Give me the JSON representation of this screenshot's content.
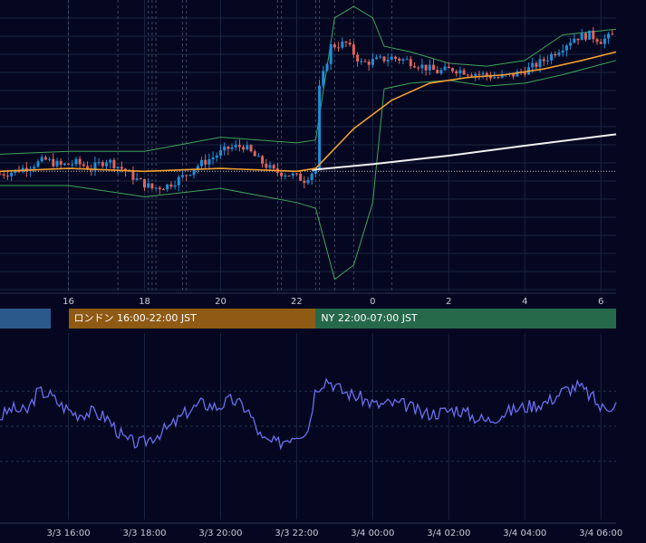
{
  "colors": {
    "background": "#050720",
    "grid": "#1a2440",
    "vline_dashed": "#3e4660",
    "candle_up": "#1e8fd8",
    "candle_down": "#e0635a",
    "ma_fast": "#f0a030",
    "ma_slow": "#f2f2f2",
    "bollinger": "#3fa45a",
    "oscillator": "#6a6ff0",
    "reference_line": "#c8c8c8"
  },
  "sessions": [
    {
      "label": "",
      "color": "#2a5a8c"
    },
    {
      "label": "ロンドン 16:00-22:00 JST",
      "color": "#8e5a14"
    },
    {
      "label": "NY 22:00-07:00 JST",
      "color": "#26694a"
    }
  ],
  "chart_data": [
    {
      "type": "candlestick",
      "x_axis_ticks": [
        "16",
        "18",
        "20",
        "22",
        "0",
        "2",
        "4",
        "6"
      ],
      "x_range_hours": [
        14.2,
        30.4
      ],
      "y_range": [
        0,
        100
      ],
      "price_path": [
        [
          14.2,
          40
        ],
        [
          14.6,
          41
        ],
        [
          15.0,
          43
        ],
        [
          15.4,
          45
        ],
        [
          15.8,
          43
        ],
        [
          16.2,
          44
        ],
        [
          16.6,
          42
        ],
        [
          17.0,
          45
        ],
        [
          17.4,
          42
        ],
        [
          17.8,
          38
        ],
        [
          18.2,
          35
        ],
        [
          18.6,
          36
        ],
        [
          19.0,
          39
        ],
        [
          19.4,
          43
        ],
        [
          19.8,
          46
        ],
        [
          20.2,
          49
        ],
        [
          20.6,
          50
        ],
        [
          21.0,
          45
        ],
        [
          21.4,
          41
        ],
        [
          21.8,
          40
        ],
        [
          22.2,
          38
        ],
        [
          22.5,
          42
        ],
        [
          22.6,
          70
        ],
        [
          22.9,
          85
        ],
        [
          23.3,
          86
        ],
        [
          23.7,
          79
        ],
        [
          24.1,
          80
        ],
        [
          24.5,
          81
        ],
        [
          24.9,
          80
        ],
        [
          25.3,
          78
        ],
        [
          25.7,
          76
        ],
        [
          26.1,
          77
        ],
        [
          26.5,
          76
        ],
        [
          26.9,
          75
        ],
        [
          27.3,
          74
        ],
        [
          27.7,
          75
        ],
        [
          28.1,
          77
        ],
        [
          28.5,
          80
        ],
        [
          28.9,
          84
        ],
        [
          29.3,
          88
        ],
        [
          29.7,
          89
        ],
        [
          30.0,
          87
        ],
        [
          30.4,
          89
        ]
      ],
      "ma_fast": [
        [
          14.2,
          41
        ],
        [
          16.0,
          42
        ],
        [
          18.0,
          41
        ],
        [
          20.0,
          42
        ],
        [
          22.0,
          41
        ],
        [
          22.5,
          42
        ],
        [
          23.5,
          56
        ],
        [
          24.5,
          66
        ],
        [
          25.5,
          72
        ],
        [
          26.5,
          74
        ],
        [
          27.5,
          75
        ],
        [
          28.5,
          77
        ],
        [
          29.5,
          80
        ],
        [
          30.4,
          83
        ]
      ],
      "ma_slow": [
        [
          22.4,
          41.5
        ],
        [
          24.0,
          43.5
        ],
        [
          26.0,
          46.5
        ],
        [
          28.0,
          50
        ],
        [
          30.4,
          54
        ]
      ],
      "bollinger_upper": [
        [
          14.2,
          47
        ],
        [
          16.0,
          48
        ],
        [
          18.0,
          48
        ],
        [
          20.0,
          53
        ],
        [
          22.0,
          51
        ],
        [
          22.5,
          52
        ],
        [
          23.0,
          95
        ],
        [
          23.5,
          99
        ],
        [
          24.0,
          95
        ],
        [
          24.3,
          85
        ],
        [
          25.0,
          83
        ],
        [
          26.0,
          79
        ],
        [
          27.0,
          78
        ],
        [
          28.0,
          80
        ],
        [
          29.0,
          89
        ],
        [
          30.4,
          91
        ]
      ],
      "bollinger_lower": [
        [
          14.2,
          36
        ],
        [
          16.0,
          36
        ],
        [
          18.0,
          32
        ],
        [
          20.0,
          35
        ],
        [
          22.0,
          30
        ],
        [
          22.5,
          28
        ],
        [
          23.0,
          3
        ],
        [
          23.5,
          8
        ],
        [
          24.0,
          30
        ],
        [
          24.3,
          70
        ],
        [
          25.0,
          72
        ],
        [
          26.0,
          73
        ],
        [
          27.0,
          71
        ],
        [
          28.0,
          72
        ],
        [
          29.0,
          75
        ],
        [
          30.4,
          80
        ]
      ],
      "reference_level": 41
    },
    {
      "type": "line",
      "x_axis_ticks": [
        "3/3 16:00",
        "3/3 18:00",
        "3/3 20:00",
        "3/3 22:00",
        "3/4 00:00",
        "3/4 02:00",
        "3/4 04:00",
        "3/4 06:00"
      ],
      "x_range_hours": [
        14.2,
        30.4
      ],
      "y_range": [
        0,
        100
      ],
      "series": [
        {
          "values": [
            [
              14.2,
              55
            ],
            [
              14.5,
              60
            ],
            [
              14.9,
              58
            ],
            [
              15.2,
              70
            ],
            [
              15.5,
              68
            ],
            [
              15.8,
              62
            ],
            [
              16.2,
              57
            ],
            [
              16.6,
              58
            ],
            [
              17.0,
              55
            ],
            [
              17.5,
              42
            ],
            [
              17.9,
              40
            ],
            [
              18.3,
              45
            ],
            [
              18.7,
              50
            ],
            [
              19.1,
              58
            ],
            [
              19.5,
              63
            ],
            [
              19.9,
              61
            ],
            [
              20.3,
              65
            ],
            [
              20.7,
              60
            ],
            [
              21.1,
              42
            ],
            [
              21.5,
              40
            ],
            [
              21.9,
              45
            ],
            [
              22.3,
              48
            ],
            [
              22.5,
              72
            ],
            [
              22.8,
              77
            ],
            [
              23.2,
              70
            ],
            [
              23.7,
              66
            ],
            [
              24.1,
              62
            ],
            [
              24.5,
              63
            ],
            [
              24.9,
              62
            ],
            [
              25.3,
              57
            ],
            [
              25.8,
              58
            ],
            [
              26.2,
              60
            ],
            [
              26.6,
              56
            ],
            [
              27.0,
              53
            ],
            [
              27.4,
              57
            ],
            [
              27.8,
              60
            ],
            [
              28.2,
              62
            ],
            [
              28.6,
              64
            ],
            [
              29.0,
              70
            ],
            [
              29.4,
              73
            ],
            [
              29.8,
              66
            ],
            [
              30.0,
              60
            ],
            [
              30.4,
              63
            ]
          ]
        }
      ]
    }
  ]
}
